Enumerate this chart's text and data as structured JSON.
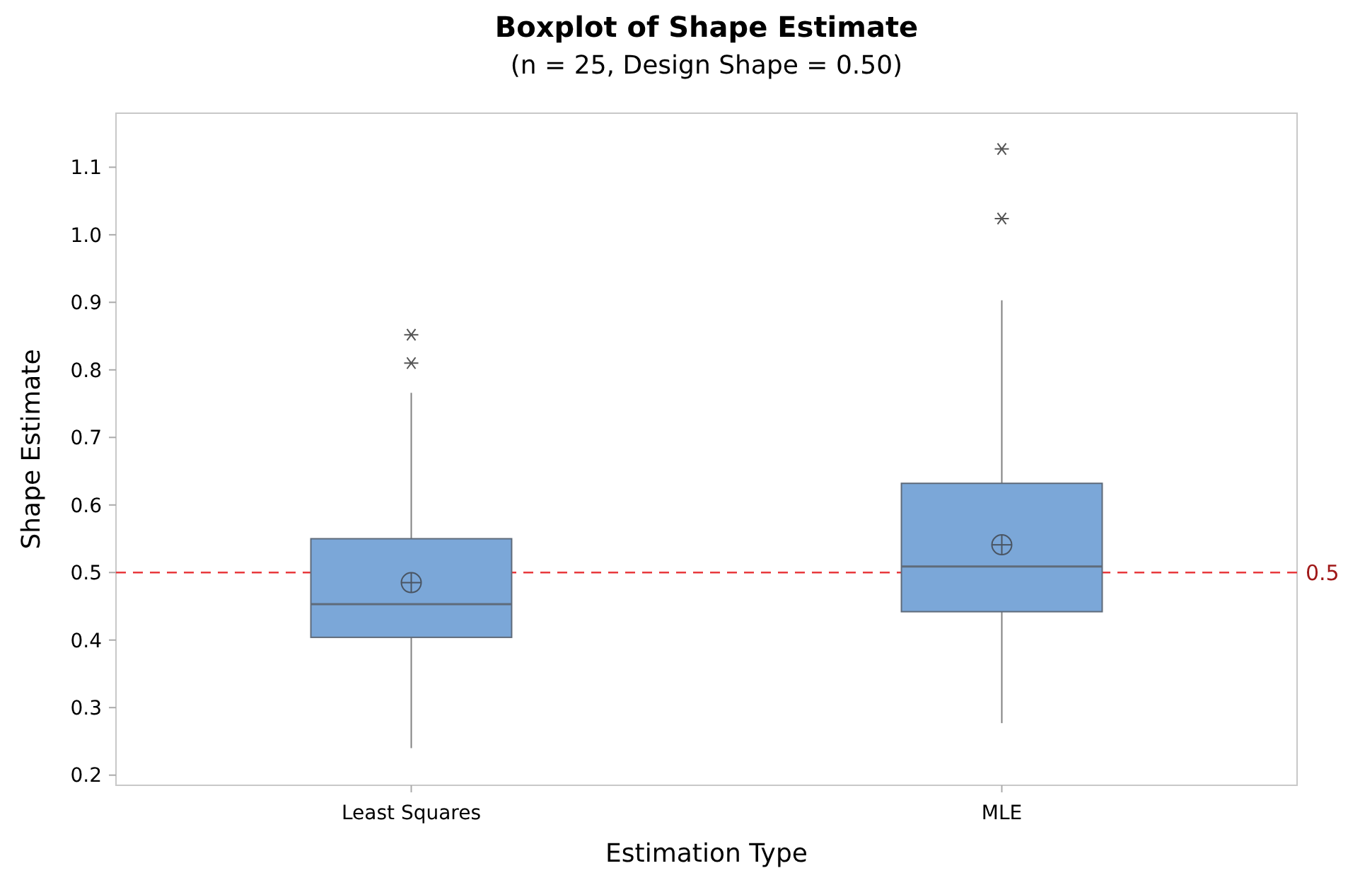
{
  "chart_data": {
    "type": "box",
    "title": "Boxplot of Shape Estimate",
    "subtitle": "(n = 25, Design Shape = 0.50)",
    "xlabel": "Estimation Type",
    "ylabel": "Shape Estimate",
    "categories": [
      "Least Squares",
      "MLE"
    ],
    "series": [
      {
        "color": "#7ba7d8",
        "boxes": [
          {
            "low": 0.24,
            "q1": 0.404,
            "median": 0.453,
            "q3": 0.55,
            "high": 0.766,
            "mean": 0.485,
            "outliers": [
              0.81,
              0.852
            ]
          },
          {
            "low": 0.277,
            "q1": 0.442,
            "median": 0.509,
            "q3": 0.632,
            "high": 0.903,
            "mean": 0.541,
            "outliers": [
              1.024,
              1.127
            ]
          }
        ]
      }
    ],
    "ylim": [
      0.185,
      1.18
    ],
    "yticks": [
      0.2,
      {
        "value": 0.3,
        "label": "0.3"
      },
      0.4,
      0.5,
      0.6,
      0.7,
      0.8,
      0.9,
      {
        "value": 1.0,
        "label": "1.0"
      },
      1.1
    ],
    "ref_lines": [
      {
        "axis": "y",
        "value": 0.5,
        "label": "0.5",
        "color": "#e8393d",
        "line_style": "dashed"
      }
    ],
    "grid": false
  }
}
